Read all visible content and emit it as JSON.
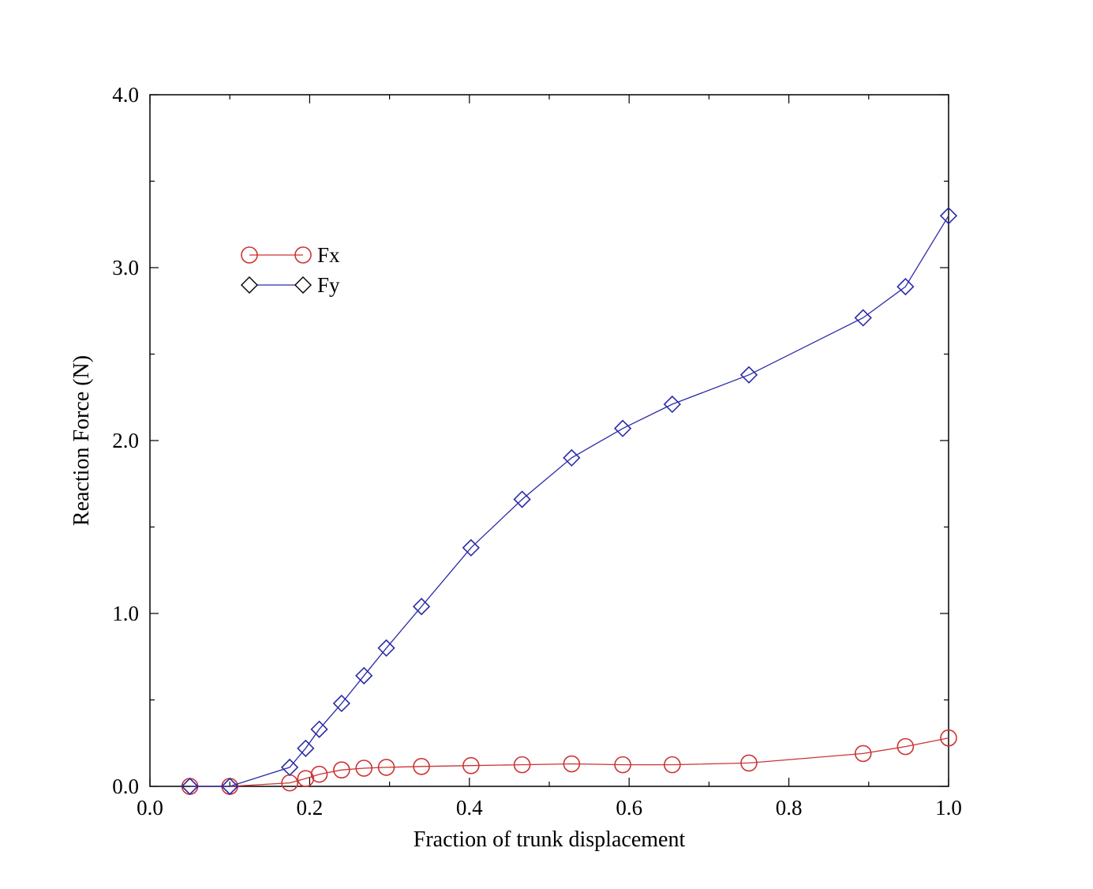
{
  "chart_data": {
    "type": "line",
    "title": "",
    "xlabel": "Fraction of trunk displacement",
    "ylabel": "Reaction Force (N)",
    "xlim": [
      0.0,
      1.0
    ],
    "ylim": [
      0.0,
      4.0
    ],
    "x_ticks": [
      0.0,
      0.2,
      0.4,
      0.6,
      0.8,
      1.0
    ],
    "x_tick_labels": [
      "0.0",
      "0.2",
      "0.4",
      "0.6",
      "0.8",
      "1.0"
    ],
    "y_ticks": [
      0.0,
      1.0,
      2.0,
      3.0,
      4.0
    ],
    "y_tick_labels": [
      "0.0",
      "1.0",
      "2.0",
      "3.0",
      "4.0"
    ],
    "x_minor_step": 0.1,
    "y_minor_step": 0.5,
    "grid": false,
    "legend_position": "upper-left",
    "series": [
      {
        "name": "Fx",
        "color": "#cc3333",
        "marker": "circle",
        "x": [
          0.05,
          0.1,
          0.175,
          0.195,
          0.212,
          0.24,
          0.268,
          0.296,
          0.34,
          0.402,
          0.466,
          0.528,
          0.592,
          0.654,
          0.75,
          0.893,
          0.946,
          1.0
        ],
        "y": [
          0.0,
          0.0,
          0.02,
          0.045,
          0.07,
          0.095,
          0.105,
          0.11,
          0.115,
          0.12,
          0.125,
          0.13,
          0.125,
          0.125,
          0.135,
          0.19,
          0.23,
          0.28
        ]
      },
      {
        "name": "Fy",
        "color": "#2a2aa8",
        "marker": "diamond",
        "x": [
          0.05,
          0.1,
          0.175,
          0.195,
          0.212,
          0.24,
          0.268,
          0.296,
          0.34,
          0.402,
          0.466,
          0.528,
          0.592,
          0.654,
          0.75,
          0.893,
          0.946,
          1.0
        ],
        "y": [
          0.0,
          0.0,
          0.11,
          0.22,
          0.33,
          0.48,
          0.64,
          0.8,
          1.04,
          1.38,
          1.66,
          1.9,
          2.07,
          2.21,
          2.38,
          2.71,
          2.89,
          3.3
        ]
      }
    ]
  }
}
